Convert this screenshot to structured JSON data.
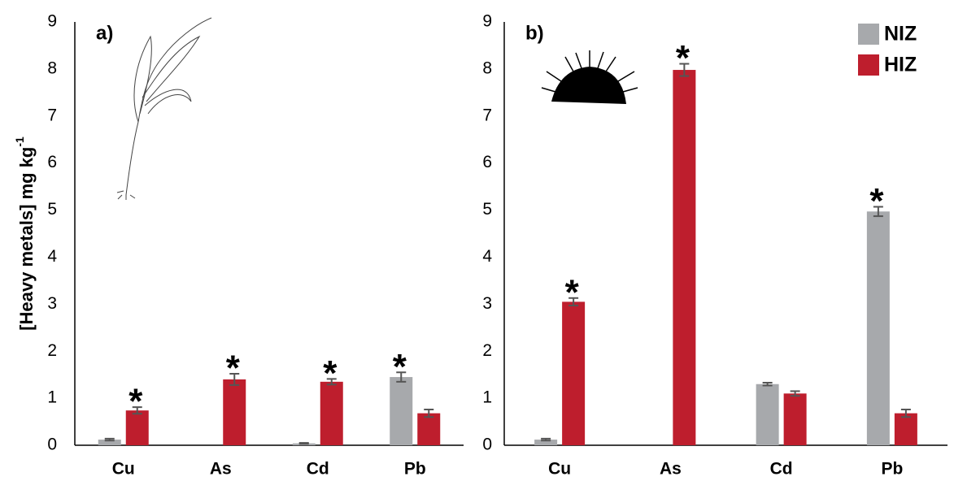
{
  "chart_data": [
    {
      "type": "bar",
      "panel_label": "a)",
      "y_label": "[Heavy metals] mg kg",
      "y_label_sup": "-1",
      "categories": [
        "Cu",
        "As",
        "Cd",
        "Pb"
      ],
      "series": [
        {
          "color": "#a7a9ac",
          "values": [
            0.12,
            0,
            0.04,
            1.45
          ],
          "errors": [
            0.02,
            null,
            0.01,
            0.1
          ],
          "significance": [
            null,
            null,
            null,
            "*"
          ]
        },
        {
          "color": "#be1e2d",
          "values": [
            0.74,
            1.4,
            1.35,
            0.68
          ],
          "errors": [
            0.07,
            0.12,
            0.06,
            0.08
          ],
          "significance": [
            "*",
            "*",
            "*",
            null
          ]
        }
      ],
      "ylim": [
        0,
        9
      ],
      "yticks": [
        0,
        1,
        2,
        3,
        4,
        5,
        6,
        7,
        8,
        9
      ]
    },
    {
      "type": "bar",
      "panel_label": "b)",
      "categories": [
        "Cu",
        "As",
        "Cd",
        "Pb"
      ],
      "series": [
        {
          "name": "NIZ",
          "color": "#a7a9ac",
          "values": [
            0.12,
            0,
            1.3,
            4.97
          ],
          "errors": [
            0.02,
            null,
            0.03,
            0.1
          ],
          "significance": [
            null,
            null,
            null,
            "*"
          ]
        },
        {
          "name": "HIZ",
          "color": "#be1e2d",
          "values": [
            3.05,
            7.98,
            1.1,
            0.68
          ],
          "errors": [
            0.08,
            0.13,
            0.05,
            0.08
          ],
          "significance": [
            "*",
            "*",
            null,
            null
          ]
        }
      ],
      "ylim": [
        0,
        9
      ],
      "yticks": [
        0,
        1,
        2,
        3,
        4,
        5,
        6,
        7,
        8,
        9
      ],
      "legend": "top-right"
    }
  ]
}
